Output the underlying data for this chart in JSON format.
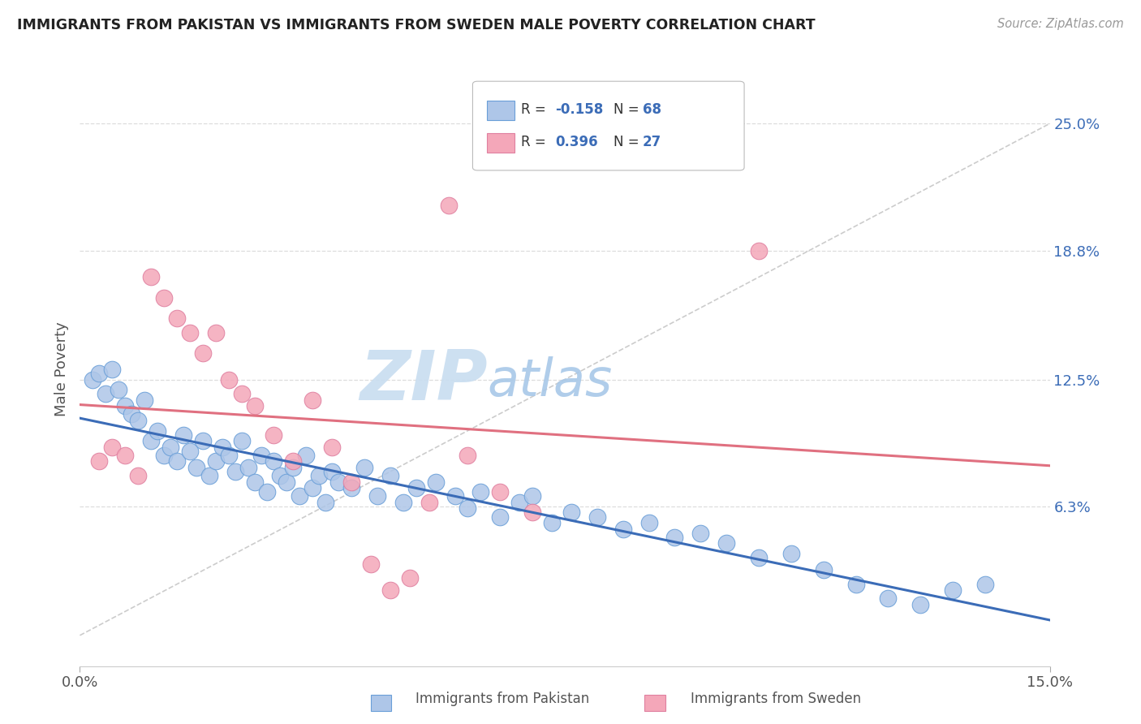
{
  "title": "IMMIGRANTS FROM PAKISTAN VS IMMIGRANTS FROM SWEDEN MALE POVERTY CORRELATION CHART",
  "source": "Source: ZipAtlas.com",
  "ylabel": "Male Poverty",
  "ytick_labels": [
    "6.3%",
    "12.5%",
    "18.8%",
    "25.0%"
  ],
  "ytick_values": [
    0.063,
    0.125,
    0.188,
    0.25
  ],
  "xmin": 0.0,
  "xmax": 0.15,
  "ymin": -0.015,
  "ymax": 0.275,
  "watermark_zip": "ZIP",
  "watermark_atlas": "atlas",
  "legend1_label": "Immigrants from Pakistan",
  "legend2_label": "Immigrants from Sweden",
  "r1_text": "-0.158",
  "n1_text": "68",
  "r2_text": "0.396",
  "n2_text": "27",
  "color_pakistan": "#aec6e8",
  "color_sweden": "#f4a7b9",
  "color_pakistan_border": "#6a9fd8",
  "color_sweden_border": "#e080a0",
  "color_pakistan_line": "#3b6cb7",
  "color_sweden_line": "#e07080",
  "color_r_n_text": "#3b6cb7",
  "color_label_text": "#333333",
  "dashed_line_color": "#cccccc",
  "grid_color": "#dddddd",
  "background_color": "#ffffff",
  "pak_x": [
    0.002,
    0.003,
    0.004,
    0.005,
    0.006,
    0.007,
    0.008,
    0.009,
    0.01,
    0.011,
    0.012,
    0.013,
    0.014,
    0.015,
    0.016,
    0.017,
    0.018,
    0.019,
    0.02,
    0.021,
    0.022,
    0.023,
    0.024,
    0.025,
    0.026,
    0.027,
    0.028,
    0.029,
    0.03,
    0.031,
    0.032,
    0.033,
    0.034,
    0.035,
    0.036,
    0.037,
    0.038,
    0.039,
    0.04,
    0.042,
    0.044,
    0.046,
    0.048,
    0.05,
    0.052,
    0.055,
    0.058,
    0.06,
    0.062,
    0.065,
    0.068,
    0.07,
    0.073,
    0.076,
    0.08,
    0.084,
    0.088,
    0.092,
    0.096,
    0.1,
    0.105,
    0.11,
    0.115,
    0.12,
    0.125,
    0.13,
    0.135,
    0.14
  ],
  "pak_y": [
    0.125,
    0.128,
    0.118,
    0.13,
    0.12,
    0.112,
    0.108,
    0.105,
    0.115,
    0.095,
    0.1,
    0.088,
    0.092,
    0.085,
    0.098,
    0.09,
    0.082,
    0.095,
    0.078,
    0.085,
    0.092,
    0.088,
    0.08,
    0.095,
    0.082,
    0.075,
    0.088,
    0.07,
    0.085,
    0.078,
    0.075,
    0.082,
    0.068,
    0.088,
    0.072,
    0.078,
    0.065,
    0.08,
    0.075,
    0.072,
    0.082,
    0.068,
    0.078,
    0.065,
    0.072,
    0.075,
    0.068,
    0.062,
    0.07,
    0.058,
    0.065,
    0.068,
    0.055,
    0.06,
    0.058,
    0.052,
    0.055,
    0.048,
    0.05,
    0.045,
    0.038,
    0.04,
    0.032,
    0.025,
    0.018,
    0.015,
    0.022,
    0.025
  ],
  "swe_x": [
    0.003,
    0.005,
    0.007,
    0.009,
    0.011,
    0.013,
    0.015,
    0.017,
    0.019,
    0.021,
    0.023,
    0.025,
    0.027,
    0.03,
    0.033,
    0.036,
    0.039,
    0.042,
    0.045,
    0.048,
    0.051,
    0.054,
    0.057,
    0.06,
    0.065,
    0.07,
    0.105
  ],
  "swe_y": [
    0.085,
    0.092,
    0.088,
    0.078,
    0.175,
    0.165,
    0.155,
    0.148,
    0.138,
    0.148,
    0.125,
    0.118,
    0.112,
    0.098,
    0.085,
    0.115,
    0.092,
    0.075,
    0.035,
    0.022,
    0.028,
    0.065,
    0.21,
    0.088,
    0.07,
    0.06,
    0.188
  ]
}
